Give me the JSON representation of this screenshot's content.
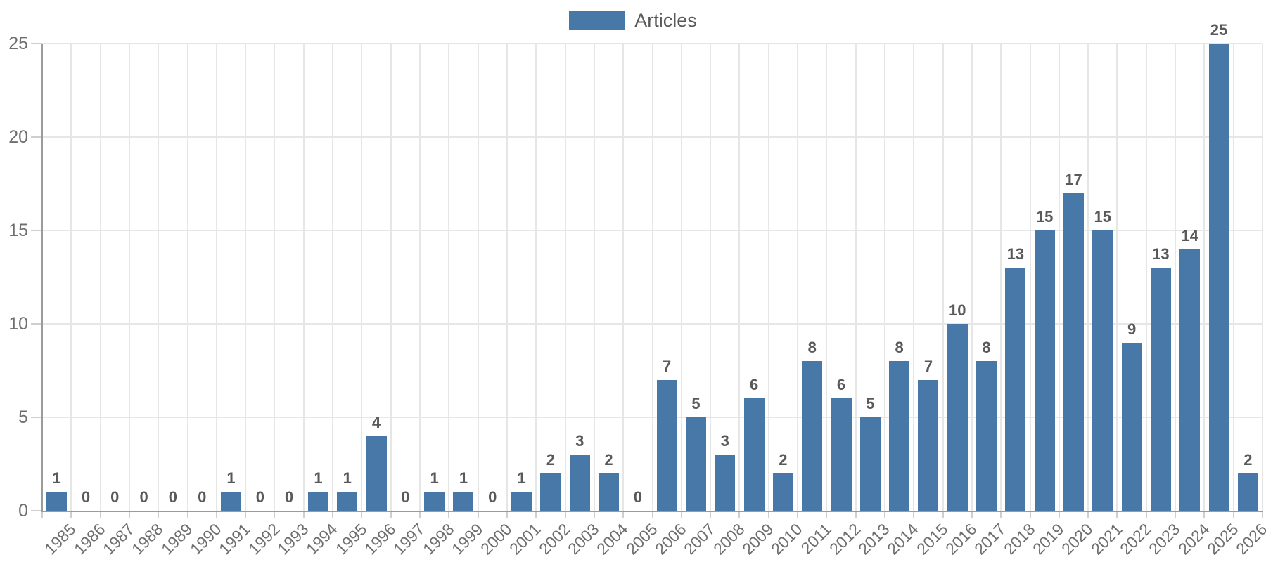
{
  "legend": {
    "label": "Articles"
  },
  "colors": {
    "bar": "#4878A8",
    "grid": "#e6e6e6",
    "axis": "#9b9b9b",
    "tick": "#cfcfcf",
    "tick_label": "#6e6e6e",
    "value_label": "#595959",
    "background": "#ffffff"
  },
  "chart_data": {
    "type": "bar",
    "title": "",
    "xlabel": "",
    "ylabel": "",
    "categories": [
      "1985",
      "1986",
      "1987",
      "1988",
      "1989",
      "1990",
      "1991",
      "1992",
      "1993",
      "1994",
      "1995",
      "1996",
      "1997",
      "1998",
      "1999",
      "2000",
      "2001",
      "2002",
      "2003",
      "2004",
      "2005",
      "2006",
      "2007",
      "2008",
      "2009",
      "2010",
      "2011",
      "2012",
      "2013",
      "2014",
      "2015",
      "2016",
      "2017",
      "2018",
      "2019",
      "2020",
      "2021",
      "2022",
      "2023",
      "2024",
      "2025",
      "2026"
    ],
    "series": [
      {
        "name": "Articles",
        "values": [
          1,
          0,
          0,
          0,
          0,
          0,
          1,
          0,
          0,
          1,
          1,
          4,
          0,
          1,
          1,
          0,
          1,
          2,
          3,
          2,
          0,
          7,
          5,
          3,
          6,
          2,
          8,
          6,
          5,
          8,
          7,
          10,
          8,
          13,
          15,
          17,
          15,
          9,
          13,
          14,
          25,
          2
        ]
      }
    ],
    "ylim": [
      0,
      25
    ],
    "yticks": [
      0,
      5,
      10,
      15,
      20,
      25
    ],
    "grid": true,
    "legend_position": "top-center",
    "value_labels": true,
    "x_label_rotation": -45
  }
}
